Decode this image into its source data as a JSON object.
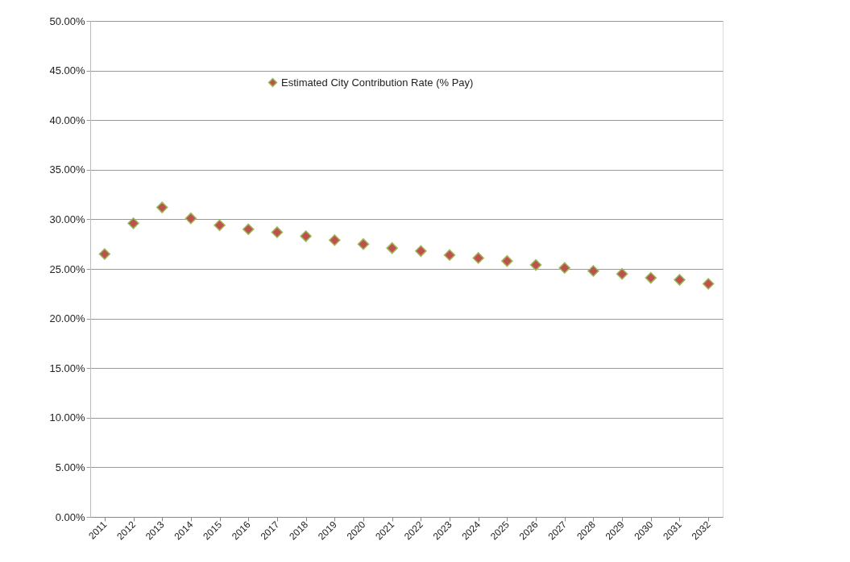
{
  "chart_data": {
    "type": "scatter",
    "categories": [
      "2011",
      "2012",
      "2013",
      "2014",
      "2015",
      "2016",
      "2017",
      "2018",
      "2019",
      "2020",
      "2021",
      "2022",
      "2023",
      "2024",
      "2025",
      "2026",
      "2027",
      "2028",
      "2029",
      "2030",
      "2031",
      "2032"
    ],
    "series": [
      {
        "name": "Estimated City Contribution Rate (% Pay)",
        "color": "#c0504d",
        "values": [
          26.5,
          29.6,
          31.2,
          30.1,
          29.4,
          29.0,
          28.7,
          28.3,
          27.9,
          27.5,
          27.1,
          26.8,
          26.4,
          26.1,
          25.8,
          25.4,
          25.1,
          24.8,
          24.5,
          24.1,
          23.9,
          23.5
        ]
      }
    ],
    "ylim": [
      0,
      50
    ],
    "yticks": [
      {
        "value": 0,
        "label": "0.00%"
      },
      {
        "value": 5,
        "label": "5.00%"
      },
      {
        "value": 10,
        "label": "10.00%"
      },
      {
        "value": 15,
        "label": "15.00%"
      },
      {
        "value": 20,
        "label": "20.00%"
      },
      {
        "value": 25,
        "label": "25.00%"
      },
      {
        "value": 30,
        "label": "30.00%"
      },
      {
        "value": 35,
        "label": "35.00%"
      },
      {
        "value": 40,
        "label": "40.00%"
      },
      {
        "value": 45,
        "label": "45.00%"
      },
      {
        "value": 50,
        "label": "50.00%"
      }
    ],
    "grid": "y",
    "legend": "top",
    "marker": "diamond"
  }
}
